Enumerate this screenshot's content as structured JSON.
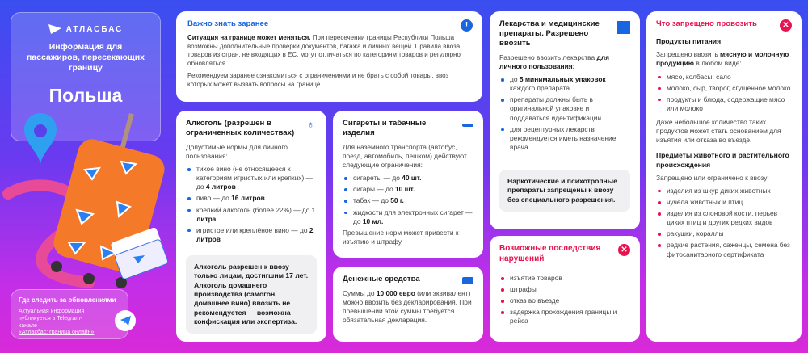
{
  "brand": {
    "name": "АТЛАСБАС",
    "subtitle": "Информация для пассажиров, пересекающих границу",
    "country": "Польша"
  },
  "updates": {
    "title": "Где следить за обновлениями",
    "text": "Актуальная информация публикуется в Telegram-канале",
    "link": "«Атласбас: граница онлайн»"
  },
  "important": {
    "title": "Важно знать заранее",
    "lead": "Ситуация на границе может меняться.",
    "text": " При пересечении границы Республики Польша возможны дополнительные проверки документов, багажа и личных вещей. Правила ввоза товаров из стран, не входящих в ЕС, могут отличаться по категориям товаров и регулярно обновляться.",
    "text2": "Рекомендуем заранее ознакомиться с ограничениями и не брать с собой товары, ввоз которых может вызвать вопросы на границе."
  },
  "alcohol": {
    "title": "Алкоголь (разрешен в ограниченных количествах)",
    "intro": "Допустимые нормы для личного пользования:",
    "items": [
      {
        "t": "тихое вино (не относящееся к категориям игристых или крепких) — до ",
        "b": "4 литров"
      },
      {
        "t": "пиво — до ",
        "b": "16 литров"
      },
      {
        "t": "крепкий алкоголь (более 22%) — до ",
        "b": "1 литра"
      },
      {
        "t": "игристое или креплёное вино — до ",
        "b": "2 литров"
      }
    ],
    "note": "Алкоголь разрешен к ввозу только лицам, достигшим 17 лет. Алкоголь домашнего производства (самогон, домашнее вино) ввозить не рекомендуется — возможна конфискация или экспертиза."
  },
  "tobacco": {
    "title": "Сигареты и табачные изделия",
    "intro": "Для наземного транспорта (автобус, поезд, автомобиль, пешком) действуют следующие ограничения:",
    "items": [
      {
        "t": "сигареты — до ",
        "b": "40 шт."
      },
      {
        "t": "сигары — до ",
        "b": "10 шт."
      },
      {
        "t": "табак — до ",
        "b": "50 г."
      },
      {
        "t": "жидкости для электронных сигарет — до ",
        "b": "10 мл."
      }
    ],
    "outro": "Превышение норм может привести к изъятию и штрафу."
  },
  "money": {
    "title": "Денежные средства",
    "pre": "Суммы до ",
    "b": "10 000 евро",
    "post": " (или эквивалент) можно ввозить без декларирования. При превышении этой суммы требуется обязательная декларация."
  },
  "meds": {
    "title": "Лекарства и медицинские препараты. Разрешено ввозить",
    "intro": "Разрешено ввозить лекарства ",
    "intro_b": "для личного пользования:",
    "items": [
      {
        "t": "до ",
        "b": "5 минимальных упаковок",
        "a": " каждого препарата"
      },
      {
        "t": "препараты должны быть в оригинальной упаковке и поддаваться идентификации"
      },
      {
        "t": "для рецептурных лекарств рекомендуется иметь назначение врача"
      }
    ],
    "note": "Наркотические и психотропные препараты запрещены к ввозу без специального разрешения."
  },
  "consequences": {
    "title": "Возможные последствия нарушений",
    "items": [
      "изъятие товаров",
      "штрафы",
      "отказ во въезде",
      "задержка прохождения границы и рейса"
    ]
  },
  "forbidden": {
    "title": "Что запрещено провозить",
    "food_title": "Продукты питания",
    "food_intro_1": "Запрещено ввозить ",
    "food_intro_b1": "мясную и молочную продукцию",
    "food_intro_2": " в любом виде:",
    "food_items": [
      "мясо, колбасы, сало",
      "молоко, сыр, творог, сгущённое молоко",
      "продукты и блюда, содержащие мясо или молоко"
    ],
    "food_note": "Даже небольшое количество таких продуктов может стать основанием для изъятия или отказа во въезде.",
    "animal_title": "Предметы животного и растительного происхождения",
    "animal_intro": "Запрещено или ограничено к ввозу:",
    "animal_items": [
      "изделия из шкур диких животных",
      "чучела животных и птиц",
      "изделия из слоновой кости, перьев диких птиц и других редких видов",
      "ракушки, кораллы",
      "редкие растения, саженцы, семена без фитосанитарного сертификата"
    ]
  },
  "colors": {
    "accent_blue": "#1a66e0",
    "accent_red": "#e8134f",
    "suitcase": "#f47a2a"
  },
  "icons": {
    "important": "exclamation-icon",
    "alcohol": "glasses-icon",
    "tobacco": "cigarette-icon",
    "money": "banknote-icon",
    "meds": "square-icon",
    "consequences": "close-circle-icon",
    "forbidden": "close-circle-icon",
    "telegram": "telegram-icon"
  }
}
